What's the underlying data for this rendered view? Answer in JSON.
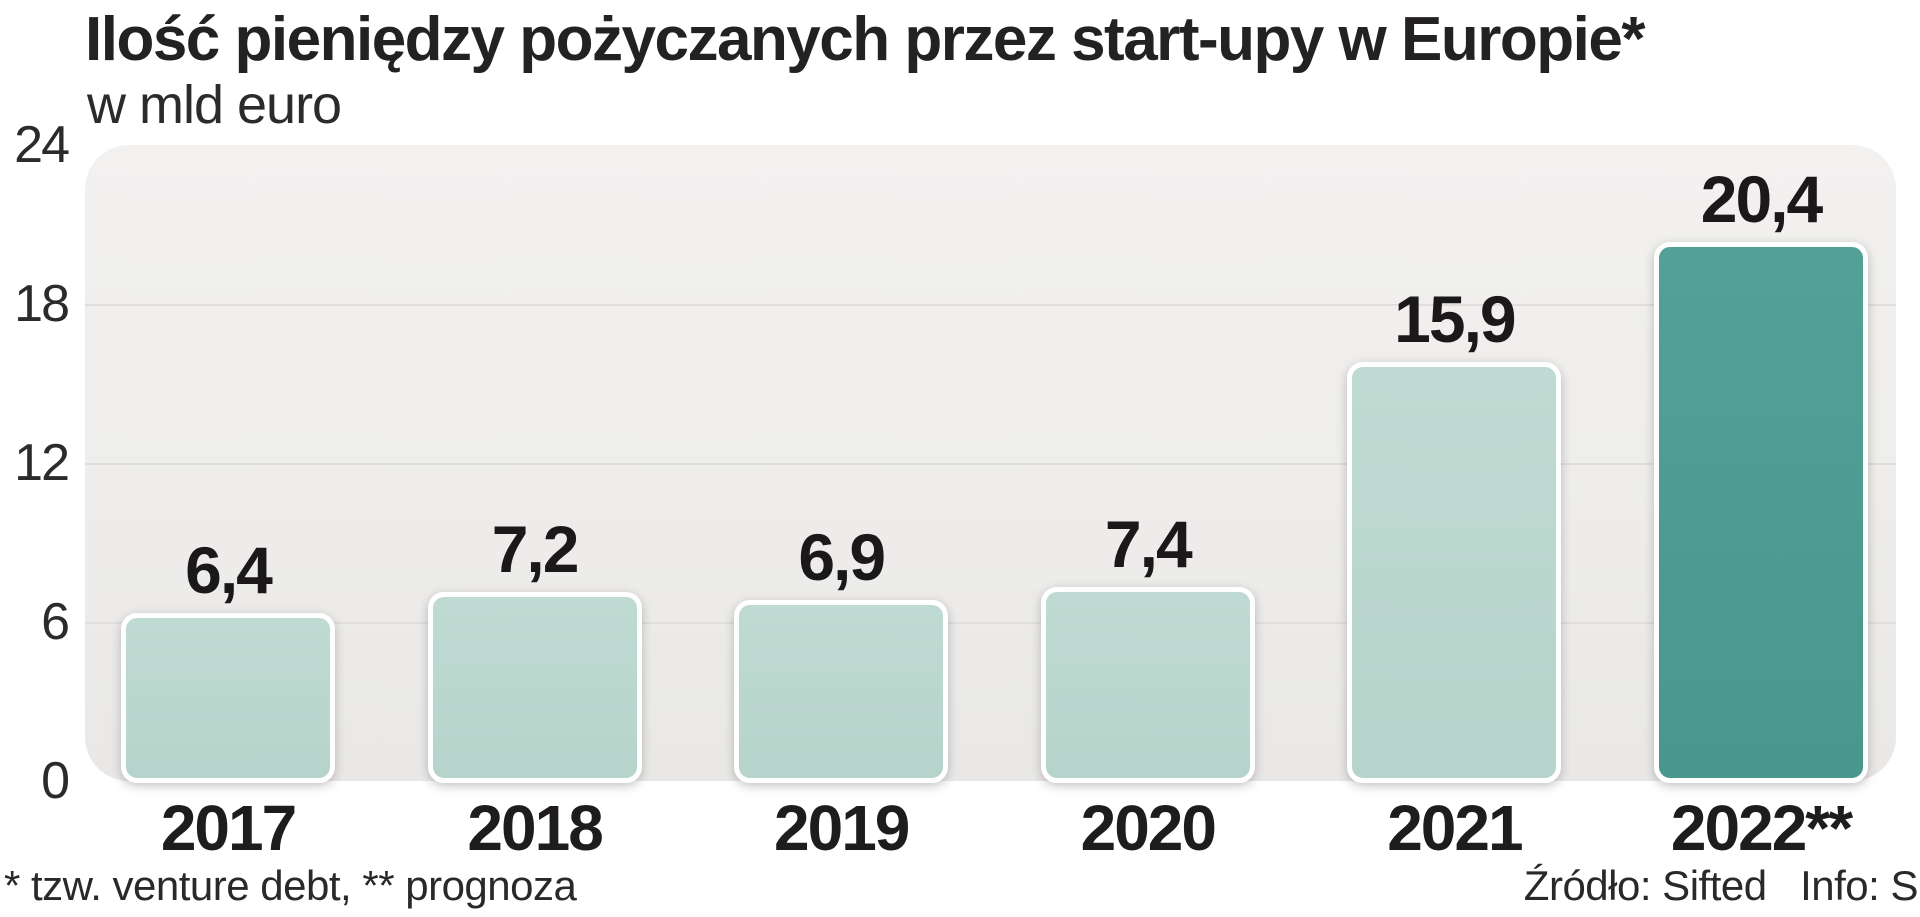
{
  "header": {
    "title": "Ilość pieniędzy pożyczanych przez start-upy w Europie*",
    "subtitle": "w mld euro"
  },
  "chart_data": {
    "type": "bar",
    "title": "Ilość pieniędzy pożyczanych przez start-upy w Europie*",
    "subtitle": "w mld euro",
    "categories": [
      "2017",
      "2018",
      "2019",
      "2020",
      "2021",
      "2022**"
    ],
    "values": [
      6.4,
      7.2,
      6.9,
      7.4,
      15.9,
      20.4
    ],
    "value_labels": [
      "6,4",
      "7,2",
      "6,9",
      "7,4",
      "15,9",
      "20,4"
    ],
    "ylim": [
      0,
      24
    ],
    "yticks": [
      0,
      6,
      12,
      18,
      24
    ],
    "grid": true,
    "highlight_index": 5,
    "xlabel": "",
    "ylabel": ""
  },
  "colors": {
    "bar_light": "#b9d6ce",
    "bar_highlight": "#4d9c92",
    "bar_border": "#ffffff",
    "plot_background": "#efeeec",
    "grid_line": "#dfdedc",
    "text": "#232122"
  },
  "footer": {
    "note_left": "* tzw. venture debt, ** prognoza",
    "source_right": "Źródło: Sifted   Info: S"
  }
}
